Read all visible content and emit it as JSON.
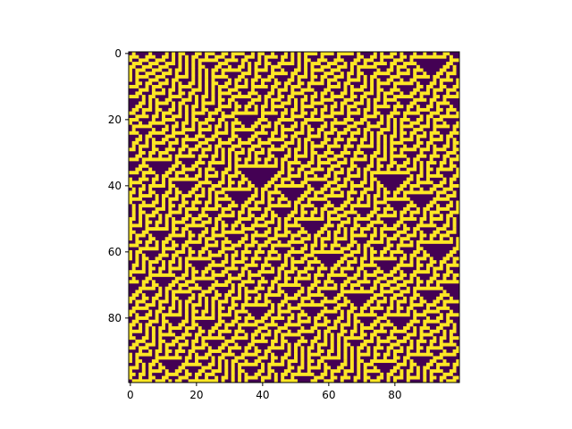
{
  "chart_data": {
    "type": "heatmap",
    "title": "",
    "xlabel": "",
    "ylabel": "",
    "rows": 100,
    "cols": 100,
    "values": "binary 0/1 cellular-automaton pattern (100x100) drawn as nested downward-pointing triangles; generated procedurally by the page script",
    "colormap": {
      "low": "#440154",
      "high": "#fde725"
    },
    "x_ticks": [
      {
        "value": 0,
        "label": "0"
      },
      {
        "value": 20,
        "label": "20"
      },
      {
        "value": 40,
        "label": "40"
      },
      {
        "value": 60,
        "label": "60"
      },
      {
        "value": 80,
        "label": "80"
      }
    ],
    "y_ticks": [
      {
        "value": 0,
        "label": "0"
      },
      {
        "value": 20,
        "label": "20"
      },
      {
        "value": 40,
        "label": "40"
      },
      {
        "value": 60,
        "label": "60"
      },
      {
        "value": 80,
        "label": "80"
      }
    ],
    "xlim": [
      -0.5,
      99.5
    ],
    "ylim": [
      99.5,
      -0.5
    ],
    "y_inverted": true,
    "grid": false,
    "legend": "none"
  }
}
